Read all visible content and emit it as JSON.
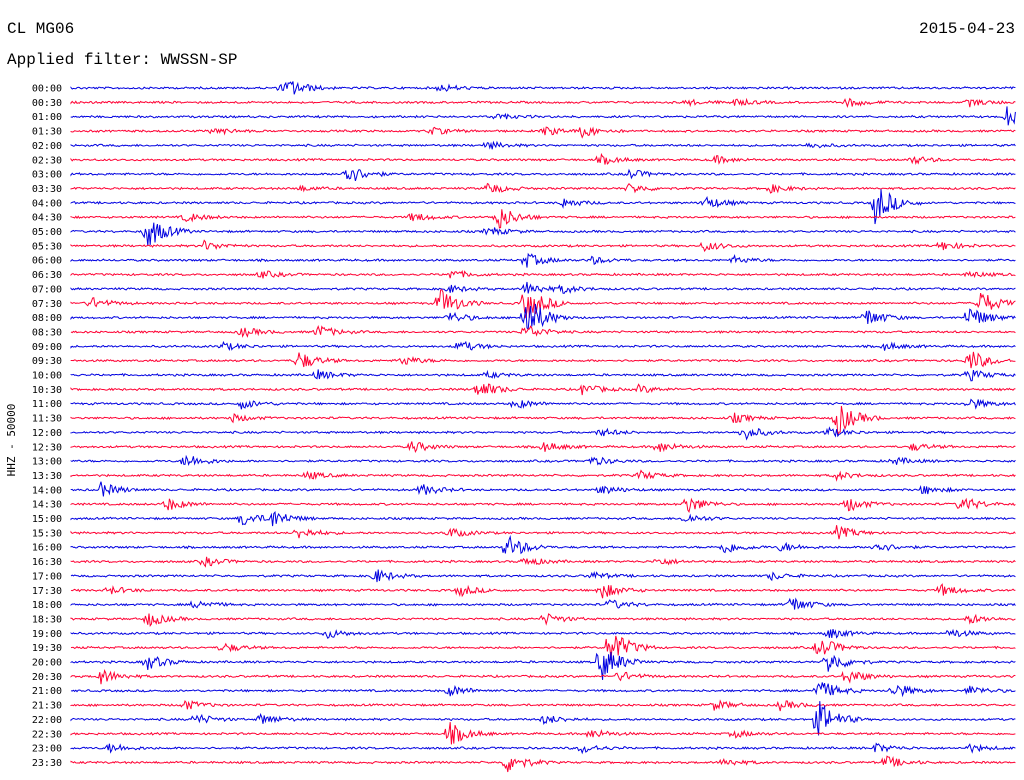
{
  "header": {
    "station": "CL MG06",
    "date": "2015-04-23",
    "filter": "Applied filter: WWSSN-SP"
  },
  "colors": {
    "even": "#0000e0",
    "odd": "#ff0033"
  },
  "chart_data": {
    "type": "line",
    "title": "CL MG06",
    "subtitle": "Applied filter: WWSSN-SP",
    "ylabel": "HHZ - 50000",
    "grid": false,
    "traces": [
      {
        "label": "00:00",
        "events": [
          [
            0.23,
            8
          ],
          [
            0.39,
            4
          ],
          [
            0.22,
            3
          ]
        ]
      },
      {
        "label": "00:30",
        "events": [
          [
            0.7,
            4
          ],
          [
            0.82,
            5
          ],
          [
            0.65,
            3
          ],
          [
            0.95,
            4
          ]
        ]
      },
      {
        "label": "01:00",
        "events": [
          [
            0.99,
            10
          ],
          [
            0.45,
            3
          ]
        ]
      },
      {
        "label": "01:30",
        "events": [
          [
            0.15,
            4
          ],
          [
            0.38,
            4
          ],
          [
            0.5,
            5
          ],
          [
            0.54,
            6
          ]
        ]
      },
      {
        "label": "02:00",
        "events": [
          [
            0.44,
            4
          ],
          [
            0.78,
            3
          ]
        ]
      },
      {
        "label": "02:30",
        "events": [
          [
            0.56,
            5
          ],
          [
            0.68,
            4
          ],
          [
            0.89,
            4
          ]
        ]
      },
      {
        "label": "03:00",
        "events": [
          [
            0.29,
            12
          ],
          [
            0.59,
            5
          ]
        ]
      },
      {
        "label": "03:30",
        "events": [
          [
            0.44,
            6
          ],
          [
            0.59,
            5
          ],
          [
            0.74,
            4
          ],
          [
            0.24,
            3
          ]
        ]
      },
      {
        "label": "04:00",
        "events": [
          [
            0.85,
            22
          ],
          [
            0.67,
            7
          ],
          [
            0.52,
            5
          ]
        ]
      },
      {
        "label": "04:30",
        "events": [
          [
            0.45,
            14
          ],
          [
            0.36,
            5
          ],
          [
            0.12,
            5
          ]
        ]
      },
      {
        "label": "05:00",
        "events": [
          [
            0.08,
            18
          ],
          [
            0.44,
            5
          ]
        ]
      },
      {
        "label": "05:30",
        "events": [
          [
            0.14,
            5
          ],
          [
            0.67,
            5
          ],
          [
            0.92,
            5
          ]
        ]
      },
      {
        "label": "06:00",
        "events": [
          [
            0.48,
            8
          ],
          [
            0.55,
            4
          ],
          [
            0.7,
            4
          ]
        ]
      },
      {
        "label": "06:30",
        "events": [
          [
            0.4,
            5
          ],
          [
            0.2,
            4
          ],
          [
            0.95,
            3
          ]
        ]
      },
      {
        "label": "07:00",
        "events": [
          [
            0.48,
            8
          ],
          [
            0.52,
            4
          ],
          [
            0.4,
            4
          ]
        ]
      },
      {
        "label": "07:30",
        "events": [
          [
            0.39,
            16
          ],
          [
            0.48,
            20
          ],
          [
            0.96,
            14
          ],
          [
            0.02,
            6
          ]
        ]
      },
      {
        "label": "08:00",
        "events": [
          [
            0.48,
            26
          ],
          [
            0.84,
            10
          ],
          [
            0.95,
            12
          ],
          [
            0.4,
            6
          ]
        ]
      },
      {
        "label": "08:30",
        "events": [
          [
            0.26,
            7
          ],
          [
            0.48,
            8
          ],
          [
            0.18,
            5
          ]
        ]
      },
      {
        "label": "09:00",
        "events": [
          [
            0.41,
            6
          ],
          [
            0.16,
            4
          ],
          [
            0.86,
            4
          ]
        ]
      },
      {
        "label": "09:30",
        "events": [
          [
            0.24,
            10
          ],
          [
            0.35,
            5
          ],
          [
            0.95,
            12
          ]
        ]
      },
      {
        "label": "10:00",
        "events": [
          [
            0.26,
            5
          ],
          [
            0.95,
            6
          ],
          [
            0.44,
            3
          ]
        ]
      },
      {
        "label": "10:30",
        "events": [
          [
            0.43,
            10
          ],
          [
            0.54,
            6
          ],
          [
            0.6,
            4
          ]
        ]
      },
      {
        "label": "11:00",
        "events": [
          [
            0.18,
            5
          ],
          [
            0.47,
            5
          ],
          [
            0.95,
            6
          ]
        ]
      },
      {
        "label": "11:30",
        "events": [
          [
            0.81,
            18
          ],
          [
            0.7,
            5
          ],
          [
            0.17,
            4
          ]
        ]
      },
      {
        "label": "12:00",
        "events": [
          [
            0.71,
            8
          ],
          [
            0.8,
            5
          ],
          [
            0.56,
            4
          ]
        ]
      },
      {
        "label": "12:30",
        "events": [
          [
            0.36,
            6
          ],
          [
            0.5,
            5
          ],
          [
            0.62,
            6
          ],
          [
            0.89,
            4
          ]
        ]
      },
      {
        "label": "13:00",
        "events": [
          [
            0.12,
            8
          ],
          [
            0.55,
            5
          ],
          [
            0.87,
            4
          ]
        ]
      },
      {
        "label": "13:30",
        "events": [
          [
            0.25,
            4
          ],
          [
            0.6,
            5
          ],
          [
            0.81,
            4
          ]
        ]
      },
      {
        "label": "14:00",
        "events": [
          [
            0.03,
            8
          ],
          [
            0.37,
            6
          ],
          [
            0.56,
            5
          ],
          [
            0.9,
            5
          ]
        ]
      },
      {
        "label": "14:30",
        "events": [
          [
            0.1,
            7
          ],
          [
            0.65,
            10
          ],
          [
            0.82,
            8
          ],
          [
            0.94,
            9
          ]
        ]
      },
      {
        "label": "15:00",
        "events": [
          [
            0.18,
            8
          ],
          [
            0.21,
            10
          ],
          [
            0.65,
            5
          ]
        ]
      },
      {
        "label": "15:30",
        "events": [
          [
            0.24,
            6
          ],
          [
            0.4,
            5
          ],
          [
            0.81,
            7
          ]
        ]
      },
      {
        "label": "16:00",
        "events": [
          [
            0.46,
            14
          ],
          [
            0.69,
            7
          ],
          [
            0.75,
            5
          ],
          [
            0.85,
            6
          ]
        ]
      },
      {
        "label": "16:30",
        "events": [
          [
            0.14,
            5
          ],
          [
            0.48,
            5
          ],
          [
            0.62,
            4
          ]
        ]
      },
      {
        "label": "17:00",
        "events": [
          [
            0.32,
            8
          ],
          [
            0.55,
            4
          ],
          [
            0.74,
            4
          ]
        ]
      },
      {
        "label": "17:30",
        "events": [
          [
            0.56,
            9
          ],
          [
            0.41,
            6
          ],
          [
            0.92,
            6
          ],
          [
            0.04,
            4
          ]
        ]
      },
      {
        "label": "18:00",
        "events": [
          [
            0.13,
            5
          ],
          [
            0.76,
            9
          ],
          [
            0.57,
            5
          ]
        ]
      },
      {
        "label": "18:30",
        "events": [
          [
            0.08,
            8
          ],
          [
            0.5,
            6
          ],
          [
            0.95,
            5
          ]
        ]
      },
      {
        "label": "19:00",
        "events": [
          [
            0.27,
            5
          ],
          [
            0.8,
            6
          ],
          [
            0.93,
            5
          ]
        ]
      },
      {
        "label": "19:30",
        "events": [
          [
            0.79,
            12
          ],
          [
            0.16,
            5
          ],
          [
            0.57,
            20
          ]
        ]
      },
      {
        "label": "20:00",
        "events": [
          [
            0.08,
            8
          ],
          [
            0.56,
            20
          ],
          [
            0.8,
            12
          ]
        ]
      },
      {
        "label": "20:30",
        "events": [
          [
            0.03,
            8
          ],
          [
            0.58,
            5
          ],
          [
            0.82,
            8
          ]
        ]
      },
      {
        "label": "21:00",
        "events": [
          [
            0.4,
            6
          ],
          [
            0.79,
            12
          ],
          [
            0.87,
            8
          ],
          [
            0.95,
            5
          ]
        ]
      },
      {
        "label": "21:30",
        "events": [
          [
            0.12,
            5
          ],
          [
            0.68,
            5
          ],
          [
            0.75,
            5
          ]
        ]
      },
      {
        "label": "22:00",
        "events": [
          [
            0.13,
            6
          ],
          [
            0.2,
            6
          ],
          [
            0.5,
            5
          ],
          [
            0.79,
            20
          ]
        ]
      },
      {
        "label": "22:30",
        "events": [
          [
            0.4,
            12
          ],
          [
            0.55,
            5
          ],
          [
            0.7,
            4
          ]
        ]
      },
      {
        "label": "23:00",
        "events": [
          [
            0.04,
            5
          ],
          [
            0.54,
            5
          ],
          [
            0.85,
            5
          ],
          [
            0.95,
            4
          ]
        ]
      },
      {
        "label": "23:30",
        "events": [
          [
            0.46,
            12
          ],
          [
            0.86,
            7
          ],
          [
            0.69,
            4
          ]
        ]
      }
    ]
  }
}
